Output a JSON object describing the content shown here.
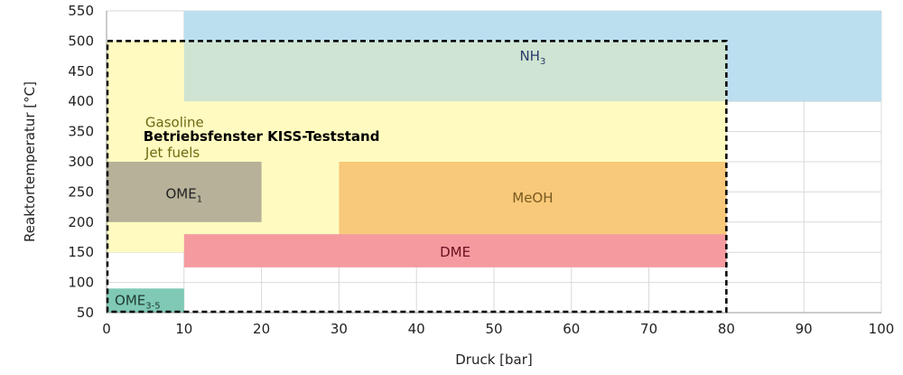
{
  "chart_data": {
    "type": "area",
    "xlabel": "Druck [bar]",
    "ylabel": "Reaktortemperatur [°C]",
    "xlim": [
      0,
      100
    ],
    "ylim": [
      50,
      550
    ],
    "x_ticks": [
      0,
      10,
      20,
      30,
      40,
      50,
      60,
      70,
      80,
      90,
      100
    ],
    "y_ticks": [
      50,
      100,
      150,
      200,
      250,
      300,
      350,
      400,
      450,
      500,
      550
    ],
    "grid": true,
    "regions": [
      {
        "id": "nh3",
        "label": "NH",
        "sub": "3",
        "x": [
          10,
          100
        ],
        "y": [
          400,
          550
        ],
        "color": "#bcdff0",
        "text_color": "#2a3a6a",
        "label_at": [
          55,
          475
        ]
      },
      {
        "id": "gasoline",
        "label": "Gasoline",
        "sub": "",
        "x": [
          0,
          80
        ],
        "y": [
          150,
          500
        ],
        "color": "#fffbc0",
        "text_color": "#6b6a10",
        "label_at": [
          5,
          365
        ],
        "anchor": "start"
      },
      {
        "id": "jetfuels",
        "label": "Jet fuels",
        "sub": "",
        "x": [
          0,
          80
        ],
        "y": [
          150,
          500
        ],
        "color": "none",
        "text_color": "#6b6a10",
        "label_at": [
          5,
          315
        ],
        "anchor": "start"
      },
      {
        "id": "ome1",
        "label": "OME",
        "sub": "1",
        "x": [
          0,
          20
        ],
        "y": [
          200,
          300
        ],
        "color": "#b6b198",
        "text_color": "#222222",
        "label_at": [
          10,
          247
        ]
      },
      {
        "id": "meoh",
        "label": "MeOH",
        "sub": "",
        "x": [
          30,
          80
        ],
        "y": [
          175,
          300
        ],
        "color": "#f8c97a",
        "text_color": "#7a5a20",
        "label_at": [
          55,
          240
        ]
      },
      {
        "id": "dme",
        "label": "DME",
        "sub": "",
        "x": [
          10,
          80
        ],
        "y": [
          125,
          180
        ],
        "color": "#f59ba0",
        "text_color": "#6a1020",
        "label_at": [
          45,
          150
        ]
      },
      {
        "id": "ome35",
        "label": "OME",
        "sub": "3-5",
        "x": [
          0,
          10
        ],
        "y": [
          50,
          90
        ],
        "color": "#7fc9b6",
        "text_color": "#1f3a30",
        "label_at": [
          4,
          70
        ]
      }
    ],
    "overlap_nh3_gasoline": {
      "x": [
        10,
        80
      ],
      "y": [
        400,
        500
      ],
      "color": "#cfe4d2"
    },
    "operating_window": {
      "label": "Betriebsfenster KISS-Teststand",
      "x": [
        0,
        80
      ],
      "y": [
        50,
        500
      ],
      "label_at": [
        20,
        342
      ]
    }
  }
}
